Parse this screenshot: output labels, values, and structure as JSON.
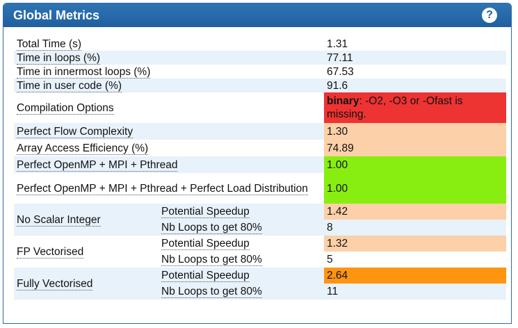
{
  "panel": {
    "title": "Global Metrics",
    "help_icon": "question-icon"
  },
  "colors": {
    "header": "#2f74b4",
    "red": "#ee3333",
    "peach": "#fcd0a8",
    "green": "#88ee11",
    "orange": "#ff9411"
  },
  "metrics": {
    "total_time": {
      "label": "Total Time (s)",
      "value": "1.31"
    },
    "loops": {
      "label": "Time in loops (%)",
      "value": "77.11"
    },
    "innermost": {
      "label": "Time in innermost loops (%)",
      "value": "67.53"
    },
    "user_code": {
      "label": "Time in user code (%)",
      "value": "91.6"
    },
    "compilation": {
      "label": "Compilation Options",
      "value_bold": "binary",
      "value_rest": ": -O2, -O3 or -Ofast is missing."
    },
    "flow": {
      "label": "Perfect Flow Complexity",
      "value": "1.30"
    },
    "array": {
      "label": "Array Access Efficiency (%)",
      "value": "74.89"
    },
    "openmp": {
      "label": "Perfect OpenMP + MPI + Pthread",
      "value": "1.00"
    },
    "openmp_load": {
      "label": "Perfect OpenMP + MPI + Pthread + Perfect Load Distribution",
      "value": "1.00"
    },
    "no_scalar": {
      "label": "No Scalar Integer",
      "speedup_label": "Potential Speedup",
      "speedup": "1.42",
      "loops_label": "Nb Loops to get 80%",
      "loops": "8"
    },
    "fp_vec": {
      "label": "FP Vectorised",
      "speedup_label": "Potential Speedup",
      "speedup": "1.32",
      "loops_label": "Nb Loops to get 80%",
      "loops": "5"
    },
    "fully_vec": {
      "label": "Fully Vectorised",
      "speedup_label": "Potential Speedup",
      "speedup": "2.64",
      "loops_label": "Nb Loops to get 80%",
      "loops": "11"
    }
  }
}
